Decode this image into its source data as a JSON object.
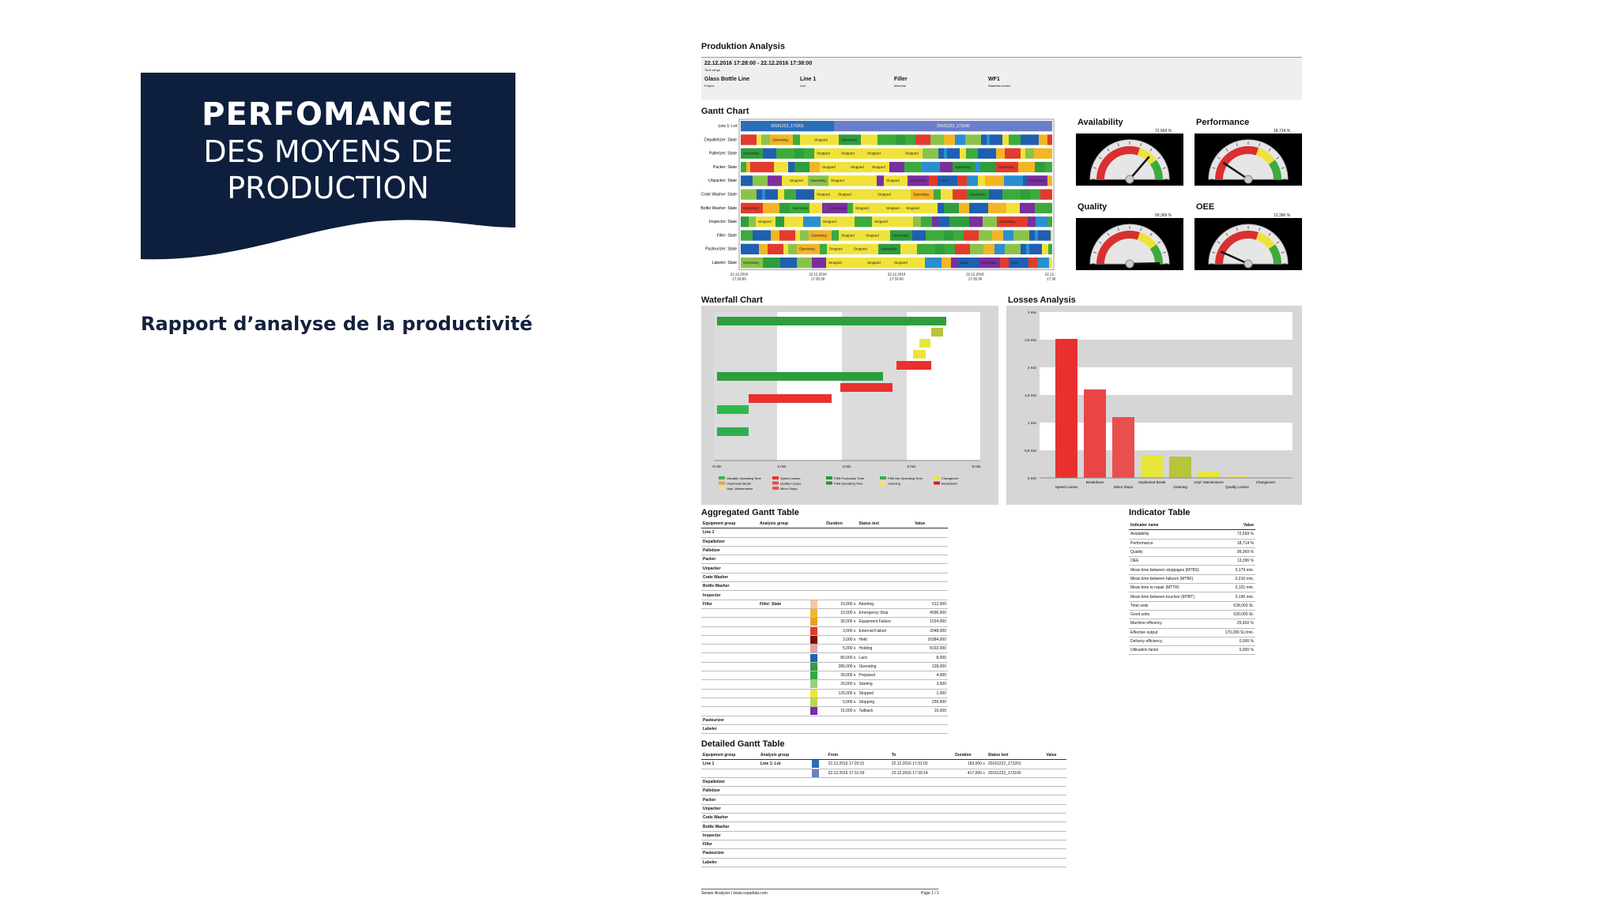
{
  "banner": {
    "line1": "PERFOMANCE",
    "line2": "DES MOYENS DE",
    "line3": "PRODUCTION",
    "bg_color": "#0e1f3d"
  },
  "subtitle": "Rapport d’analyse de la productivité",
  "report": {
    "title": "Produktion Analysis",
    "time_range": "22.12.2016 17:28:00 - 22.12.2016 17:38:00",
    "time_range_label": "Time range",
    "fields": [
      {
        "value": "Glass Bottle Line",
        "label": "Project"
      },
      {
        "value": "Line 1",
        "label": "Line"
      },
      {
        "value": "Filler",
        "label": "Machine"
      },
      {
        "value": "WF1",
        "label": "Waterfall model"
      }
    ],
    "gantt": {
      "title": "Gantt Chart",
      "rows": [
        "Line 1: Lot",
        "Depalletizer: State",
        "Palletizer: State",
        "Packer: State",
        "Unpacker: State",
        "Crate Washer: State",
        "Bottle Washer: State",
        "Inspector: State",
        "Filler: State",
        "Pasteurizer: State",
        "Labeler: State"
      ],
      "lot_labels": [
        "20161222_172201",
        "20161222_173100"
      ],
      "segment_labels": [
        "Operating",
        "Lack",
        "Stopped"
      ],
      "time_labels": [
        {
          "date": "22.12.2016",
          "time": "17:28:00"
        },
        {
          "date": "22.12.2016",
          "time": "17:30:30"
        },
        {
          "date": "22.12.2016",
          "time": "17:33:00"
        },
        {
          "date": "22.12.2016",
          "time": "17:35:30"
        },
        {
          "date": "22.12.2016",
          "time": "17:38:00"
        }
      ]
    },
    "gauges": [
      {
        "title": "Availability",
        "value": "72,569 %",
        "fraction": 0.72569
      },
      {
        "title": "Performance",
        "value": "18,714 %",
        "fraction": 0.18714
      },
      {
        "title": "Quality",
        "value": "99,369 %",
        "fraction": 0.99369
      },
      {
        "title": "OEE",
        "value": "13,396 %",
        "fraction": 0.13396
      }
    ],
    "waterfall": {
      "title": "Waterfall Chart",
      "x_ticks": [
        "0 min",
        "2 min",
        "4 min",
        "6 min",
        "8 min"
      ],
      "legend": [
        {
          "label": "Valuable Operating Time",
          "color": "#3bb54a"
        },
        {
          "label": "Speed Losses",
          "color": "#e8312f"
        },
        {
          "label": "FNB Production Time",
          "color": "#1f9e48"
        },
        {
          "label": "FNB Net Operating Time",
          "color": "#2fae50"
        },
        {
          "label": "Changeover",
          "color": "#e6e63a"
        },
        {
          "label": "Unplanned Break",
          "color": "#e8a03a"
        },
        {
          "label": "Quality Losses",
          "color": "#e05050"
        },
        {
          "label": "FNB Operating Time",
          "color": "#1f8e40"
        },
        {
          "label": "Cleaning",
          "color": "#f0e650"
        },
        {
          "label": "Breakdown",
          "color": "#d02020"
        },
        {
          "label": "Unpl. Maintenance",
          "color": "#e6e68a"
        },
        {
          "label": "Minor Stops",
          "color": "#ea5050"
        }
      ]
    },
    "losses": {
      "title": "Losses Analysis",
      "y_ticks": [
        "0 min",
        "0,5 min",
        "1 min",
        "1,5 min",
        "2 min",
        "2,5 min",
        "3 min"
      ],
      "categories": [
        "Speed Losses",
        "Breakdown",
        "Minor Stops",
        "Unplanned Break",
        "Cleaning",
        "Unpl. Maintenance",
        "Quality Losses",
        "Changeover"
      ]
    },
    "aggregated": {
      "title": "Aggregated Gantt Table",
      "headers": [
        "Equipment group",
        "Analysis group",
        "",
        "Duration",
        "Status text",
        "Value"
      ],
      "groups": [
        "Line 1",
        "Depalletizer",
        "Palletizer",
        "Packer",
        "Unpacker",
        "Crate Washer",
        "Bottle Washer",
        "Inspector"
      ],
      "filler_group": "Filler",
      "filler_analysis": "Filler: State",
      "filler_rows": [
        {
          "color": "#f3c9a8",
          "duration": "10,000 s",
          "status": "Aborting",
          "value": "512,000"
        },
        {
          "color": "#f2b625",
          "duration": "10,000 s",
          "status": "Emergency Stop",
          "value": "4096,000"
        },
        {
          "color": "#e8a020",
          "duration": "30,000 s",
          "status": "Equipment Failure",
          "value": "1024,000"
        },
        {
          "color": "#e23b2b",
          "duration": "3,000 s",
          "status": "External Failure",
          "value": "2048,000"
        },
        {
          "color": "#7a1010",
          "duration": "3,000 s",
          "status": "Held",
          "value": "16384,000"
        },
        {
          "color": "#e8a0a0",
          "duration": "5,000 s",
          "status": "Holding",
          "value": "8192,000"
        },
        {
          "color": "#1f5fb0",
          "duration": "80,000 s",
          "status": "Lack",
          "value": "8,000"
        },
        {
          "color": "#2e9e3c",
          "duration": "285,000 s",
          "status": "Operating",
          "value": "128,000"
        },
        {
          "color": "#2fa84a",
          "duration": "30,000 s",
          "status": "Prepared",
          "value": "4,000"
        },
        {
          "color": "#9ad07a",
          "duration": "20,000 s",
          "status": "Starting",
          "value": "3,000"
        },
        {
          "color": "#f0e23a",
          "duration": "120,000 s",
          "status": "Stopped",
          "value": "1,000"
        },
        {
          "color": "#b8d84a",
          "duration": "5,000 s",
          "status": "Stopping",
          "value": "256,000"
        },
        {
          "color": "#7a2f9c",
          "duration": "15,000 s",
          "status": "Tailback",
          "value": "16,000"
        }
      ],
      "tail_groups": [
        "Pasteurizer",
        "Labeler"
      ]
    },
    "indicator": {
      "title": "Indicator Table",
      "headers": [
        "Indicator name",
        "Value"
      ],
      "rows": [
        [
          "Availability",
          "72,569 %"
        ],
        [
          "Performance",
          "18,714 %"
        ],
        [
          "Quality",
          "99,369 %"
        ],
        [
          "OEE",
          "13,396 %"
        ],
        [
          "Mean time between stoppages (MTBS)",
          "0,179 min."
        ],
        [
          "Mean time between failures (MTBF)",
          "0,216 min."
        ],
        [
          "Mean time to repair (MTTR)",
          "0,101 min."
        ],
        [
          "Mean time between touches (MTBT)",
          "0,196 min."
        ],
        [
          "Total units",
          "628,000 St."
        ],
        [
          "Good units",
          "630,000 St."
        ],
        [
          "Machine efficency",
          "25,602 %"
        ],
        [
          "Effective output",
          "170,280 St./min."
        ],
        [
          "Delivery efficiency",
          "0,000 %"
        ],
        [
          "Utilisation factor",
          "0,000 %"
        ]
      ]
    },
    "detailed": {
      "title": "Detailed Gantt Table",
      "headers": [
        "Equipment group",
        "Analysis group",
        "",
        "From",
        "To",
        "Duration",
        "Status text",
        "Value"
      ],
      "lot_group": "Line 1",
      "lot_analysis": "Line 1: Lot",
      "lot_rows": [
        {
          "color": "#2a6fb8",
          "from": "22.12.2016 17:20:31",
          "to": "22.12.2016 17:31:02",
          "duration": "183,000 s",
          "status": "20161222_172201"
        },
        {
          "color": "#6b7fc8",
          "from": "22.12.2016 17:31:03",
          "to": "22.12.2016 17:39:14",
          "duration": "417,000 s",
          "status": "20161222_173100"
        }
      ],
      "groups": [
        "Depalletizer",
        "Palletizer",
        "Packer",
        "Unpacker",
        "Crate Washer",
        "Bottle Washer",
        "Inspector",
        "Filler",
        "Pasteurizer",
        "Labeler"
      ]
    },
    "footer_left": "Senser Analyzer | www.copadata.com",
    "footer_right": "Page 1 / 1"
  }
}
